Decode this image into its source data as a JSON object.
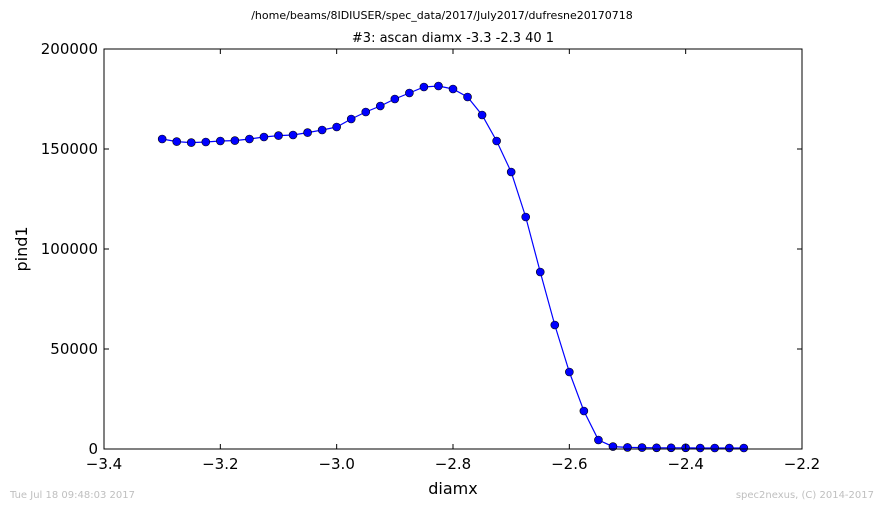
{
  "page": {
    "suptitle": "/home/beams/8IDIUSER/spec_data/2017/July2017/dufresne20170718",
    "timestamp": "Tue Jul 18 09:48:03 2017",
    "credit": "spec2nexus, (C) 2014-2017"
  },
  "chart_data": {
    "type": "line",
    "title": "#3: ascan  diamx -3.3 -2.3  40 1",
    "xlabel": "diamx",
    "ylabel": "pind1",
    "xlim": [
      -3.4,
      -2.2
    ],
    "ylim": [
      0,
      200000
    ],
    "xticks": [
      -3.4,
      -3.2,
      -3.0,
      -2.8,
      -2.6,
      -2.4,
      -2.2
    ],
    "xtick_labels": [
      "−3.4",
      "−3.2",
      "−3.0",
      "−2.8",
      "−2.6",
      "−2.4",
      "−2.2"
    ],
    "yticks": [
      0,
      50000,
      100000,
      150000,
      200000
    ],
    "ytick_labels": [
      "0",
      "50000",
      "100000",
      "150000",
      "200000"
    ],
    "grid": false,
    "series": [
      {
        "color": "#0000ff",
        "marker": "circle",
        "x": [
          -3.3,
          -3.275,
          -3.25,
          -3.225,
          -3.2,
          -3.175,
          -3.15,
          -3.125,
          -3.1,
          -3.075,
          -3.05,
          -3.025,
          -3.0,
          -2.975,
          -2.95,
          -2.925,
          -2.9,
          -2.875,
          -2.85,
          -2.825,
          -2.8,
          -2.775,
          -2.75,
          -2.725,
          -2.7,
          -2.675,
          -2.65,
          -2.625,
          -2.6,
          -2.575,
          -2.55,
          -2.525,
          -2.5,
          -2.475,
          -2.45,
          -2.425,
          -2.4,
          -2.375,
          -2.35,
          -2.325,
          -2.3
        ],
        "values": [
          155000,
          153700,
          153200,
          153500,
          154000,
          154200,
          155000,
          156000,
          156700,
          157000,
          158200,
          159500,
          161000,
          165000,
          168500,
          171500,
          175000,
          178000,
          181000,
          181500,
          180000,
          176000,
          167000,
          154000,
          138500,
          116000,
          88500,
          62000,
          38500,
          19000,
          4500,
          1200,
          800,
          700,
          600,
          600,
          600,
          500,
          500,
          500,
          500
        ]
      }
    ]
  }
}
